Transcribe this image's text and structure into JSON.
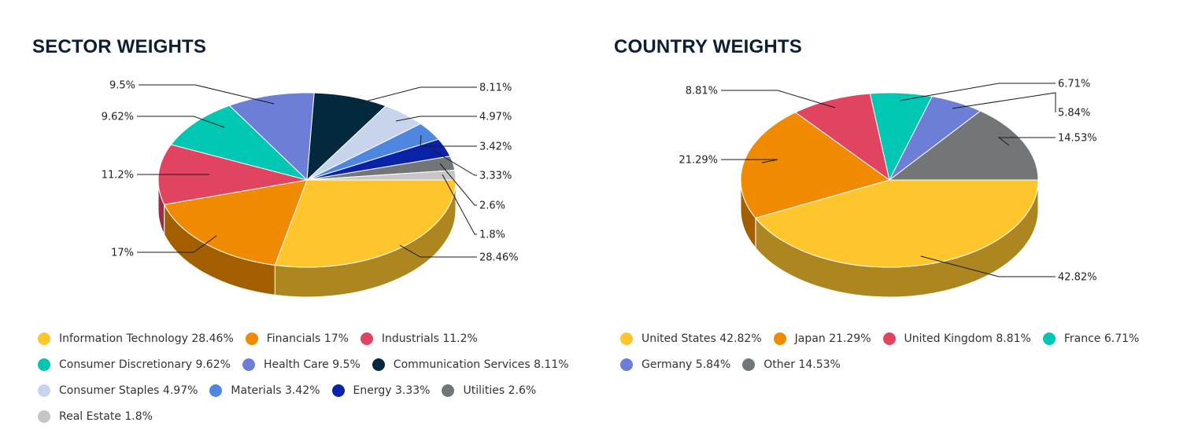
{
  "sector": {
    "title": "SECTOR WEIGHTS",
    "legend_rows": [
      [
        0,
        1,
        2
      ],
      [
        3,
        4,
        5
      ],
      [
        6,
        7,
        8,
        9
      ],
      [
        10
      ]
    ],
    "chart_data": {
      "type": "pie",
      "title": "SECTOR WEIGHTS",
      "categories": [
        "Information Technology",
        "Financials",
        "Industrials",
        "Consumer Discretionary",
        "Health Care",
        "Communication Services",
        "Consumer Staples",
        "Materials",
        "Energy",
        "Utilities",
        "Real Estate"
      ],
      "values": [
        28.46,
        17,
        11.2,
        9.62,
        9.5,
        8.11,
        4.97,
        3.42,
        3.33,
        2.6,
        1.8
      ],
      "value_labels": [
        "28.46%",
        "17%",
        "11.2%",
        "9.62%",
        "9.5%",
        "8.11%",
        "4.97%",
        "3.42%",
        "3.33%",
        "2.6%",
        "1.8%"
      ],
      "legend_labels": [
        "Information Technology 28.46%",
        "Financials 17%",
        "Industrials 11.2%",
        "Consumer Discretionary 9.62%",
        "Health Care 9.5%",
        "Communication Services 8.11%",
        "Consumer Staples 4.97%",
        "Materials 3.42%",
        "Energy 3.33%",
        "Utilities 2.6%",
        "Real Estate 1.8%"
      ],
      "colors": [
        "#ffc52d",
        "#f08a00",
        "#e14461",
        "#00c6b4",
        "#6d7ed6",
        "#04283e",
        "#c7d4ec",
        "#4f86e0",
        "#0a22a8",
        "#727679",
        "#c6c6c6"
      ],
      "legend_position": "bottom",
      "style": "3d-pie"
    }
  },
  "country": {
    "title": "COUNTRY WEIGHTS",
    "legend_rows": [
      [
        0,
        1,
        2,
        3
      ],
      [
        4,
        5
      ]
    ],
    "chart_data": {
      "type": "pie",
      "title": "COUNTRY WEIGHTS",
      "categories": [
        "United States",
        "Japan",
        "United Kingdom",
        "France",
        "Germany",
        "Other"
      ],
      "values": [
        42.82,
        21.29,
        8.81,
        6.71,
        5.84,
        14.53
      ],
      "value_labels": [
        "42.82%",
        "21.29%",
        "8.81%",
        "6.71%",
        "5.84%",
        "14.53%"
      ],
      "legend_labels": [
        "United States 42.82%",
        "Japan 21.29%",
        "United Kingdom 8.81%",
        "France 6.71%",
        "Germany 5.84%",
        "Other 14.53%"
      ],
      "colors": [
        "#ffc52d",
        "#f08a00",
        "#e14461",
        "#00c6b4",
        "#6d7ed6",
        "#727679"
      ],
      "legend_position": "bottom",
      "style": "3d-pie"
    }
  }
}
